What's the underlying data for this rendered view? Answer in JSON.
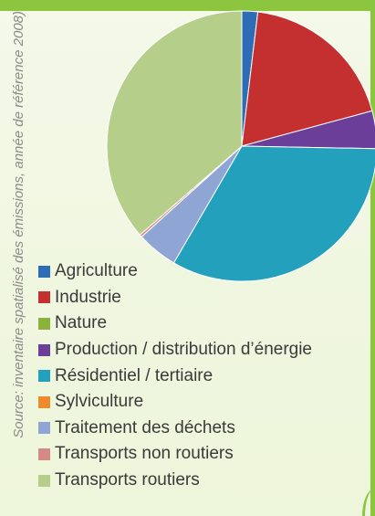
{
  "source": "Source: inventaire spatialisé des émissions, année de référence 2008)",
  "chart_data": {
    "type": "pie",
    "title": "",
    "legend_position": "bottom-left",
    "slices": [
      {
        "label": "Agriculture",
        "value": 1.9,
        "color": "#2e6db5"
      },
      {
        "label": "Industrie",
        "value": 18.9,
        "color": "#c3302f"
      },
      {
        "label": "Nature",
        "value": 0.0,
        "color": "#8ab33e"
      },
      {
        "label": "Production / distribution d’énergie",
        "value": 4.5,
        "color": "#6b3f99"
      },
      {
        "label": "Résidentiel / tertiaire",
        "value": 33.1,
        "color": "#23a0bc"
      },
      {
        "label": "Sylviculture",
        "value": 0.0,
        "color": "#ef8b2a"
      },
      {
        "label": "Traitement des déchets",
        "value": 4.9,
        "color": "#8fa6d4"
      },
      {
        "label": "Transports non routiers",
        "value": 0.3,
        "color": "#d58a88"
      },
      {
        "label": "Transports routiers",
        "value": 36.4,
        "color": "#b5cf8a"
      }
    ]
  }
}
